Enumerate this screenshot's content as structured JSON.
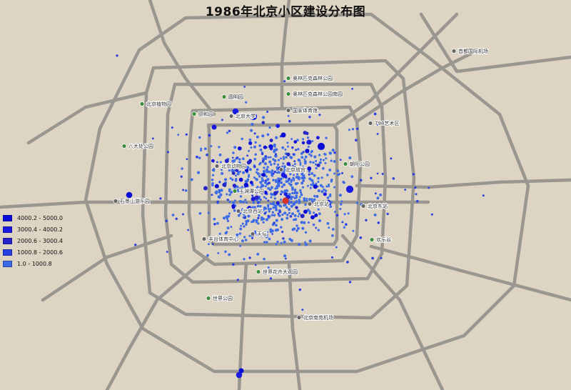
{
  "title": "1986年北京小区建设分布图",
  "colors": {
    "background": "#ddd4c4",
    "road": "#9a9690",
    "park_icon": "#3e8e3e",
    "landmark_icon": "#666666",
    "highlight": "#d9302a",
    "dot_colors": [
      "#0b0bd8",
      "#1a1ae0",
      "#2424c8",
      "#2a3fe0",
      "#3d6ae6"
    ]
  },
  "legend": {
    "items": [
      {
        "range": "4000.2 - 5000.0",
        "color": "#0b0bd8"
      },
      {
        "range": "3000.4 - 4000.2",
        "color": "#1a1ae0"
      },
      {
        "range": "2000.6 - 3000.4",
        "color": "#2424c8"
      },
      {
        "range": "1000.8 - 2000.6",
        "color": "#2a3fe0"
      },
      {
        "range": "1.0 - 1000.8",
        "color": "#3d6ae6"
      }
    ]
  },
  "places": [
    {
      "name": "首都国际机场",
      "kind": "landmark"
    },
    {
      "name": "奥林匹克森林公园",
      "kind": "park"
    },
    {
      "name": "奥林匹克森林公园南园",
      "kind": "park"
    },
    {
      "name": "圆明园",
      "kind": "park"
    },
    {
      "name": "北京植物园",
      "kind": "park"
    },
    {
      "name": "颐和园",
      "kind": "park"
    },
    {
      "name": "北京大学",
      "kind": "landmark"
    },
    {
      "name": "国家体育馆",
      "kind": "landmark"
    },
    {
      "name": "798艺术区",
      "kind": "landmark"
    },
    {
      "name": "八大处公园",
      "kind": "park"
    },
    {
      "name": "北京动物园",
      "kind": "landmark"
    },
    {
      "name": "北京故宫",
      "kind": "landmark"
    },
    {
      "name": "朝阳公园",
      "kind": "park"
    },
    {
      "name": "玉渊潭公园",
      "kind": "park"
    },
    {
      "name": "石景山游乐园",
      "kind": "landmark"
    },
    {
      "name": "北京站",
      "kind": "landmark"
    },
    {
      "name": "北京东站",
      "kind": "landmark"
    },
    {
      "name": "北京西站",
      "kind": "landmark"
    },
    {
      "name": "丰台体育中心",
      "kind": "landmark"
    },
    {
      "name": "天坛",
      "kind": "landmark"
    },
    {
      "name": "欢乐谷",
      "kind": "park"
    },
    {
      "name": "世界花卉大观园",
      "kind": "park"
    },
    {
      "name": "世界公园",
      "kind": "park"
    },
    {
      "name": "北京南苑机场",
      "kind": "landmark"
    }
  ]
}
